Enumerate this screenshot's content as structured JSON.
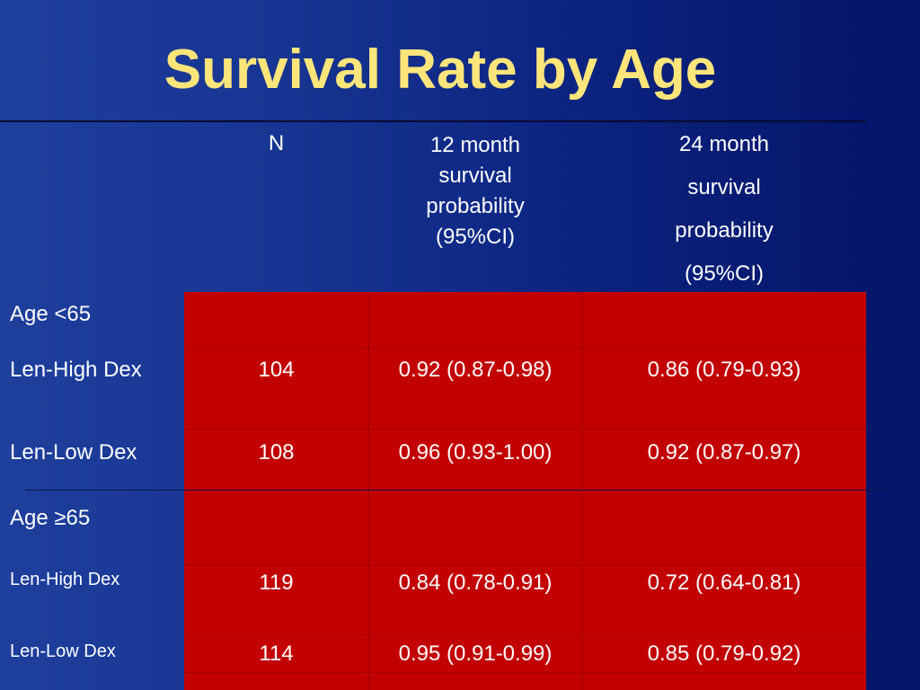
{
  "title": "Survival Rate by Age",
  "colors": {
    "background": "#0d2582",
    "title": "#ffe57a",
    "cell_fill": "#c20000",
    "text": "#ffffff"
  },
  "table": {
    "columns": [
      {
        "lines": [
          "N"
        ]
      },
      {
        "lines": [
          "12 month",
          "survival",
          "probability",
          "(95%CI)"
        ]
      },
      {
        "lines": [
          "24 month",
          "survival",
          "probability",
          "(95%CI)"
        ]
      }
    ],
    "groups": [
      {
        "label": "Age <65",
        "rows": [
          {
            "label": "Len-High Dex",
            "n": "104",
            "m12": "0.92 (0.87-0.98)",
            "m24": "0.86 (0.79-0.93)"
          },
          {
            "label": "Len-Low Dex",
            "n": "108",
            "m12": "0.96 (0.93-1.00)",
            "m24": "0.92 (0.87-0.97)"
          }
        ]
      },
      {
        "label": "Age ≥65",
        "rows": [
          {
            "label": "Len-High Dex",
            "n": "119",
            "m12": "0.84 (0.78-0.91)",
            "m24": "0.72 (0.64-0.81)"
          },
          {
            "label": "Len-Low Dex",
            "n": "114",
            "m12": "0.95 (0.91-0.99)",
            "m24": "0.85 (0.79-0.92)"
          }
        ]
      }
    ]
  }
}
